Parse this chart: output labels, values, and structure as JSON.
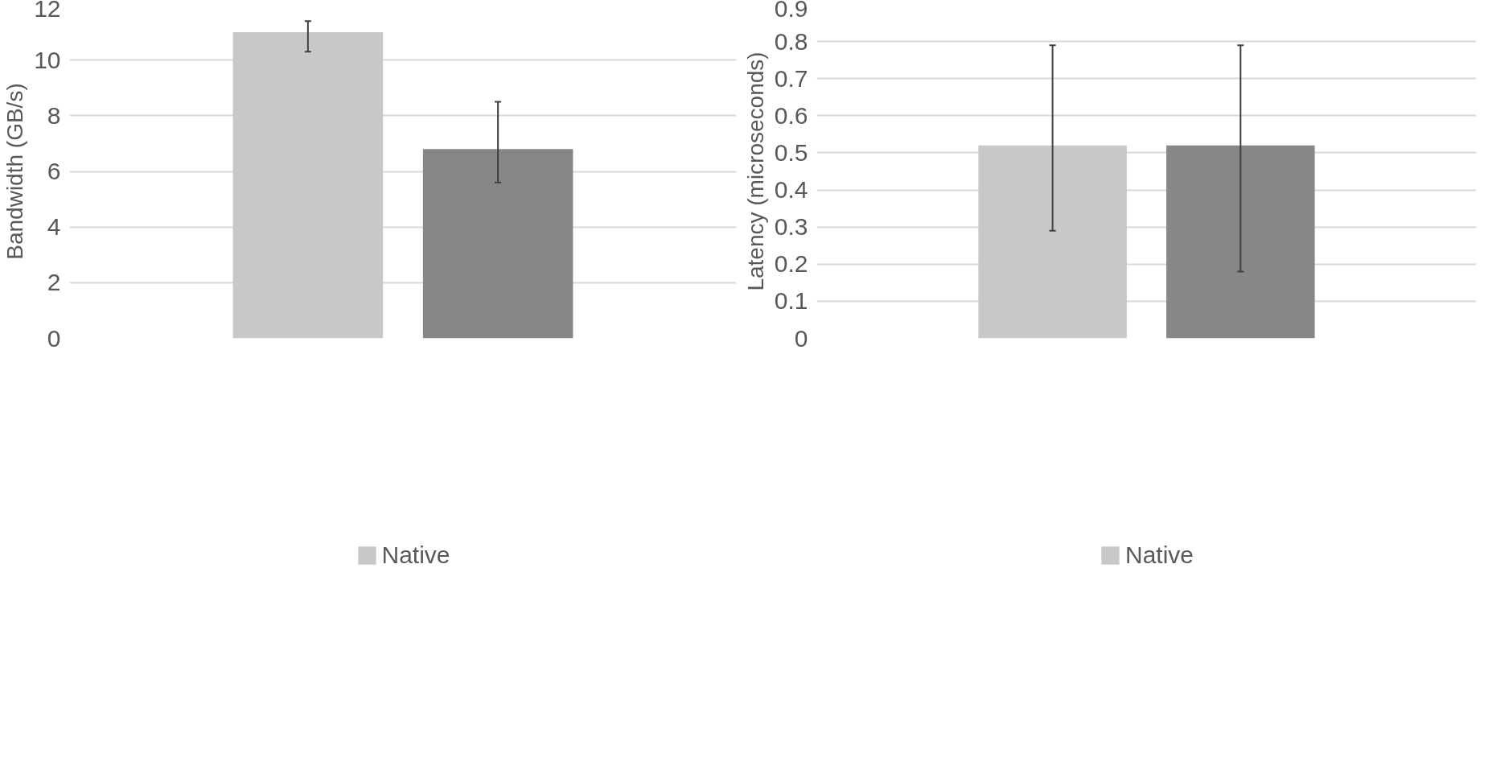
{
  "chart_data": [
    {
      "type": "bar",
      "ylabel": "Bandwidth (GB/s)",
      "categories": [
        null
      ],
      "ylim": [
        0,
        12
      ],
      "yticks": [
        0,
        2,
        4,
        6,
        8,
        10,
        12
      ],
      "grid": "y",
      "legend": "bottom",
      "tick_labels": "y",
      "series": [
        {
          "name": "Native",
          "color": "#c8c8c8",
          "values": [
            11.0
          ],
          "errors": [
            [
              10.3,
              11.4
            ]
          ]
        },
        {
          "color": "#878787",
          "values": [
            6.8
          ],
          "errors": [
            [
              5.6,
              8.5
            ]
          ]
        }
      ]
    },
    {
      "type": "bar",
      "ylabel": "Latency (microseconds)",
      "categories": [
        null
      ],
      "ylim": [
        0,
        0.9
      ],
      "yticks": [
        0,
        0.1,
        0.2,
        0.3,
        0.4,
        0.5,
        0.6,
        0.7,
        0.8,
        0.9
      ],
      "grid": "y",
      "legend": "bottom",
      "tick_labels": "y",
      "series": [
        {
          "name": "Native",
          "color": "#c8c8c8",
          "values": [
            0.52
          ],
          "errors": [
            [
              0.29,
              0.79
            ]
          ]
        },
        {
          "color": "#878787",
          "values": [
            0.52
          ],
          "errors": [
            [
              0.18,
              0.79
            ]
          ]
        }
      ]
    }
  ]
}
